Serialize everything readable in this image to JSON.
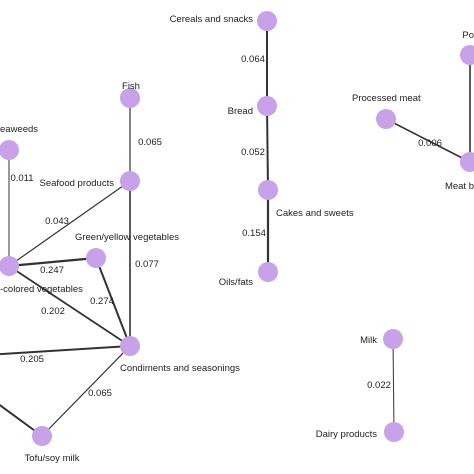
{
  "graph": {
    "node_color": "#c8a2e8",
    "edge_color": "#333333",
    "nodes": [
      {
        "id": "cereals",
        "label": "Cereals and snacks"
      },
      {
        "id": "bread",
        "label": "Bread"
      },
      {
        "id": "cakes",
        "label": "Cakes and sweets"
      },
      {
        "id": "oils",
        "label": "Oils/fats"
      },
      {
        "id": "fish",
        "label": "Fish"
      },
      {
        "id": "seaweeds",
        "label": "eaweeds"
      },
      {
        "id": "seafood",
        "label": "Seafood products"
      },
      {
        "id": "greenyellow",
        "label": "Green/yellow vegetables"
      },
      {
        "id": "colored",
        "label": "-colored vegetables"
      },
      {
        "id": "condiments",
        "label": "Condiments and seasonings"
      },
      {
        "id": "tofu",
        "label": "Tofu/soy milk"
      },
      {
        "id": "leftA",
        "label": ""
      },
      {
        "id": "leftB",
        "label": ""
      },
      {
        "id": "processed",
        "label": "Processed meat"
      },
      {
        "id": "po",
        "label": "Po"
      },
      {
        "id": "meat",
        "label": "Meat b"
      },
      {
        "id": "milk",
        "label": "Milk"
      },
      {
        "id": "dairy",
        "label": "Dairy products"
      }
    ],
    "edges": [
      {
        "source": "cereals",
        "target": "bread",
        "weight": "0.064"
      },
      {
        "source": "bread",
        "target": "cakes",
        "weight": "0.052"
      },
      {
        "source": "cakes",
        "target": "oils",
        "weight": "0.154"
      },
      {
        "source": "fish",
        "target": "seafood",
        "weight": "0.065"
      },
      {
        "source": "seaweeds",
        "target": "colored",
        "weight": "0.011"
      },
      {
        "source": "seafood",
        "target": "colored",
        "weight": "0.043"
      },
      {
        "source": "seafood",
        "target": "condiments",
        "weight": "0.077"
      },
      {
        "source": "colored",
        "target": "greenyellow",
        "weight": "0.247"
      },
      {
        "source": "greenyellow",
        "target": "condiments",
        "weight": "0.274"
      },
      {
        "source": "colored",
        "target": "condiments",
        "weight": "0.202"
      },
      {
        "source": "leftA",
        "target": "condiments",
        "weight": "0.205"
      },
      {
        "source": "condiments",
        "target": "tofu",
        "weight": "0.065"
      },
      {
        "source": "leftB",
        "target": "tofu",
        "weight": ""
      },
      {
        "source": "processed",
        "target": "meat",
        "weight": "0.006"
      },
      {
        "source": "po",
        "target": "meat",
        "weight": ""
      },
      {
        "source": "milk",
        "target": "dairy",
        "weight": "0.022"
      }
    ]
  }
}
